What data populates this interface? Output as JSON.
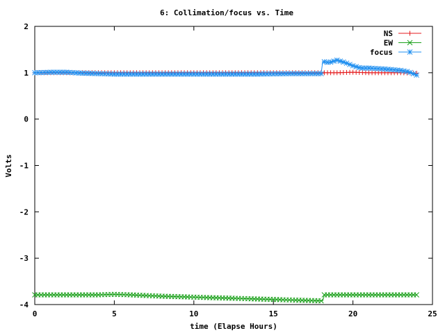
{
  "chart_data": {
    "type": "line",
    "title": "6: Collimation/focus vs. Time",
    "xlabel": "time (Elapse Hours)",
    "ylabel": "Volts",
    "xlim": [
      0,
      25
    ],
    "ylim": [
      -4,
      2
    ],
    "xticks": [
      "0",
      "5",
      "10",
      "15",
      "20",
      "25"
    ],
    "yticks": [
      "-4",
      "-3",
      "-2",
      "-1",
      "0",
      "1",
      "2"
    ],
    "grid": false,
    "legend_position": "top-right",
    "series": [
      {
        "name": "NS",
        "color": "#e41a1c",
        "marker": "plus",
        "x": [
          0,
          2,
          4,
          6,
          8,
          10,
          12,
          14,
          16,
          18,
          18.2,
          19,
          20,
          21,
          22,
          23,
          24
        ],
        "y": [
          1.0,
          1.0,
          1.0,
          1.0,
          1.0,
          1.0,
          1.0,
          1.0,
          1.0,
          1.0,
          1.0,
          1.0,
          1.01,
          1.0,
          1.0,
          1.0,
          0.99
        ]
      },
      {
        "name": "EW",
        "color": "#1ca11c",
        "marker": "cross",
        "x": [
          0,
          2,
          4,
          5,
          6,
          8,
          10,
          12,
          14,
          16,
          17,
          18,
          18.1,
          18.2,
          19,
          20,
          22,
          24
        ],
        "y": [
          -3.79,
          -3.79,
          -3.79,
          -3.78,
          -3.79,
          -3.82,
          -3.84,
          -3.86,
          -3.88,
          -3.9,
          -3.91,
          -3.92,
          -3.92,
          -3.79,
          -3.79,
          -3.79,
          -3.79,
          -3.79
        ]
      },
      {
        "name": "focus",
        "color": "#1f8ff0",
        "marker": "star",
        "x": [
          0,
          1,
          2,
          3,
          4,
          5,
          6,
          8,
          10,
          12,
          14,
          16,
          18,
          18.1,
          18.5,
          19,
          19.5,
          20,
          20.5,
          21,
          22,
          23,
          23.5,
          24
        ],
        "y": [
          1.0,
          1.01,
          1.01,
          0.99,
          0.98,
          0.97,
          0.97,
          0.97,
          0.97,
          0.97,
          0.97,
          0.98,
          0.98,
          1.24,
          1.22,
          1.27,
          1.22,
          1.15,
          1.1,
          1.1,
          1.08,
          1.05,
          1.02,
          0.95
        ]
      }
    ]
  }
}
